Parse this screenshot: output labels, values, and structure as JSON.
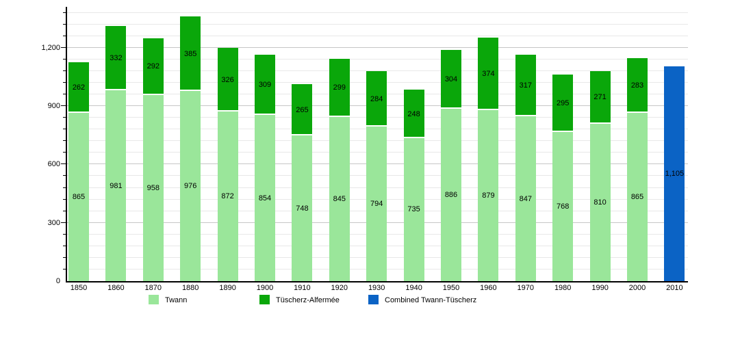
{
  "chart_data": {
    "type": "bar",
    "stacked": true,
    "title": "",
    "xlabel": "",
    "ylabel": "",
    "categories": [
      "1850",
      "1860",
      "1870",
      "1880",
      "1890",
      "1900",
      "1910",
      "1920",
      "1930",
      "1940",
      "1950",
      "1960",
      "1970",
      "1980",
      "1990",
      "2000",
      "2010"
    ],
    "series": [
      {
        "name": "Twann",
        "color": "#9ae69a",
        "values": [
          865,
          981,
          958,
          976,
          872,
          854,
          748,
          845,
          794,
          735,
          886,
          879,
          847,
          768,
          810,
          865,
          null
        ]
      },
      {
        "name": "Tüscherz-Alfermée",
        "color": "#0aa70a",
        "values": [
          262,
          332,
          292,
          385,
          326,
          309,
          265,
          299,
          284,
          248,
          304,
          374,
          317,
          295,
          271,
          283,
          null
        ]
      },
      {
        "name": "Combined Twann-Tüscherz",
        "color": "#0b63c5",
        "values": [
          null,
          null,
          null,
          null,
          null,
          null,
          null,
          null,
          null,
          null,
          null,
          null,
          null,
          null,
          null,
          null,
          1105
        ]
      }
    ],
    "bar_value_labels": true,
    "yticks": [
      0,
      300,
      600,
      900,
      1200
    ],
    "ylim": [
      0,
      1410
    ],
    "minor_grid_step": 60,
    "major_grid_step": 300,
    "grid": true,
    "legend_position": "bottom",
    "colors": {
      "minor_gridline": "#e8e8e8",
      "major_gridline": "#c6c6c6",
      "axis": "#000000",
      "label_text": "#000000"
    }
  },
  "legend": {
    "items": [
      {
        "label": "Twann",
        "color": "#9ae69a"
      },
      {
        "label": "Tüscherz-Alfermée",
        "color": "#0aa70a"
      },
      {
        "label": "Combined Twann-Tüscherz",
        "color": "#0b63c5"
      }
    ]
  }
}
